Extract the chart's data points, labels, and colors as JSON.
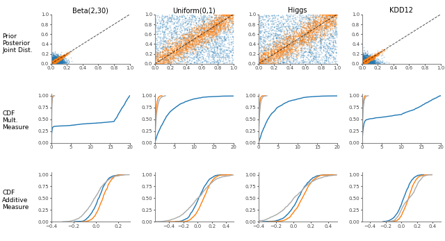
{
  "titles": [
    "Beta(2,30)",
    "Uniform(0,1)",
    "Higgs",
    "KDD12"
  ],
  "row_labels": [
    "Prior\nPosterior\nJoint Dist.",
    "CDF\nMult.\nMeasure",
    "CDF\nAdditive\nMeasure"
  ],
  "color_blue": "#1f77b4",
  "color_orange": "#ff7f0e",
  "color_gray": "#aaaaaa",
  "color_darkgray": "#555555",
  "figsize": [
    6.4,
    3.47
  ],
  "dpi": 100,
  "title_fontsize": 7,
  "tick_fontsize": 5,
  "row_label_fontsize": 6.5
}
